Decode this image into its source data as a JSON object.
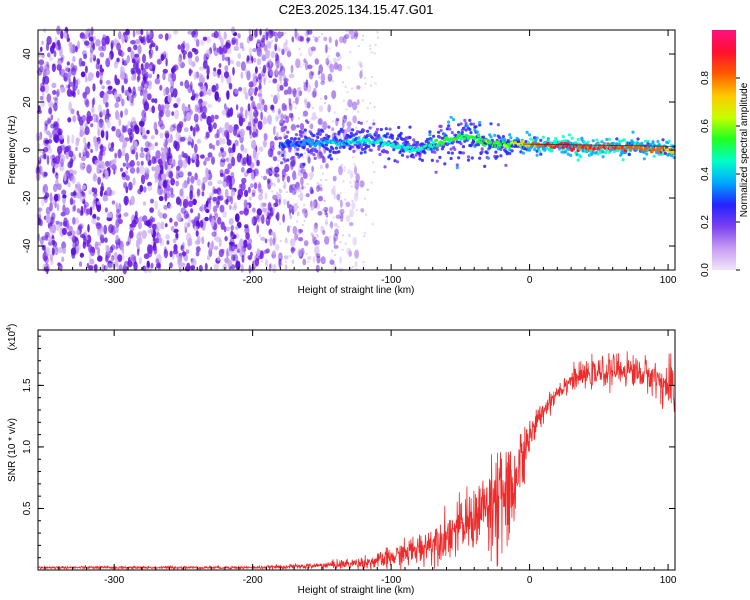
{
  "title": "C2E3.2025.134.15.47.G01",
  "colors": {
    "line": "#ee2a2a",
    "scatter_low": "#c8a8f0",
    "scatter_mid": "#7a28e8",
    "scatter_high": "#5a10d8",
    "colorbar_stops": [
      "#f0e6fb",
      "#c79cf3",
      "#7b3ff0",
      "#2323ff",
      "#00a8ff",
      "#00ffc8",
      "#20ff20",
      "#c8ff00",
      "#ffc800",
      "#ff5a00",
      "#ff1030",
      "#ff1080"
    ]
  },
  "chart_data": [
    {
      "type": "heatmap",
      "name": "spectrogram",
      "xlabel": "Height of straight line (km)",
      "ylabel": "Frequency (Hz)",
      "xlim": [
        -355,
        105
      ],
      "ylim": [
        -50,
        50
      ],
      "xticks": [
        "-300",
        "-200",
        "-100",
        "0",
        "100"
      ],
      "yticks": [
        "-40",
        "-20",
        "0",
        "20",
        "40"
      ],
      "colorbar": {
        "label": "Normalized spectral amplitude",
        "range": [
          0.0,
          1.0
        ],
        "ticks": [
          "0.0",
          "0.2",
          "0.4",
          "0.6",
          "0.8"
        ]
      },
      "description_points": {
        "noise_region_x": [
          -355,
          -140
        ],
        "noise_amplitude": 0.15,
        "signal_band": {
          "x": [
            -180,
            -160,
            -140,
            -120,
            -100,
            -80,
            -60,
            -45,
            -30,
            -20,
            -10,
            0,
            20,
            40,
            60,
            80,
            100,
            105
          ],
          "center_hz": [
            2,
            3,
            3,
            4,
            2,
            0,
            4,
            6,
            3,
            2,
            3,
            2,
            2,
            1,
            1,
            1,
            0,
            0
          ],
          "width_hz": [
            9,
            8,
            7,
            7,
            7,
            6,
            9,
            12,
            8,
            6,
            5,
            4,
            4,
            4,
            4,
            4,
            4,
            4
          ],
          "amplitude": [
            0.35,
            0.4,
            0.45,
            0.5,
            0.5,
            0.5,
            0.55,
            0.55,
            0.6,
            0.6,
            0.7,
            0.8,
            0.95,
            0.95,
            0.9,
            0.85,
            0.85,
            0.8
          ]
        }
      }
    },
    {
      "type": "line",
      "name": "snr",
      "xlabel": "Height of straight line (km)",
      "ylabel": "SNR (10 * v/v)",
      "yunit_label": "(x10",
      "yunit_exp": "4",
      "xlim": [
        -355,
        105
      ],
      "ylim": [
        0.0,
        1.95
      ],
      "xticks": [
        "-300",
        "-200",
        "-100",
        "0",
        "100"
      ],
      "yticks": [
        "0.5",
        "1.0",
        "1.5"
      ],
      "envelope": {
        "x": [
          -355,
          -300,
          -200,
          -160,
          -130,
          -110,
          -100,
          -80,
          -60,
          -45,
          -35,
          -25,
          -18,
          -12,
          -8,
          -5,
          0,
          10,
          20,
          30,
          40,
          50,
          60,
          70,
          80,
          90,
          100,
          105
        ],
        "mean": [
          0.02,
          0.02,
          0.02,
          0.03,
          0.05,
          0.07,
          0.1,
          0.17,
          0.28,
          0.38,
          0.48,
          0.58,
          0.66,
          0.85,
          0.92,
          1.0,
          1.08,
          1.3,
          1.45,
          1.55,
          1.58,
          1.6,
          1.62,
          1.63,
          1.6,
          1.57,
          1.48,
          1.4
        ],
        "noise": [
          0.01,
          0.01,
          0.01,
          0.02,
          0.04,
          0.06,
          0.08,
          0.12,
          0.17,
          0.22,
          0.28,
          0.32,
          0.32,
          0.28,
          0.22,
          0.2,
          0.12,
          0.08,
          0.08,
          0.08,
          0.09,
          0.1,
          0.12,
          0.12,
          0.12,
          0.12,
          0.18,
          0.25
        ]
      }
    }
  ]
}
